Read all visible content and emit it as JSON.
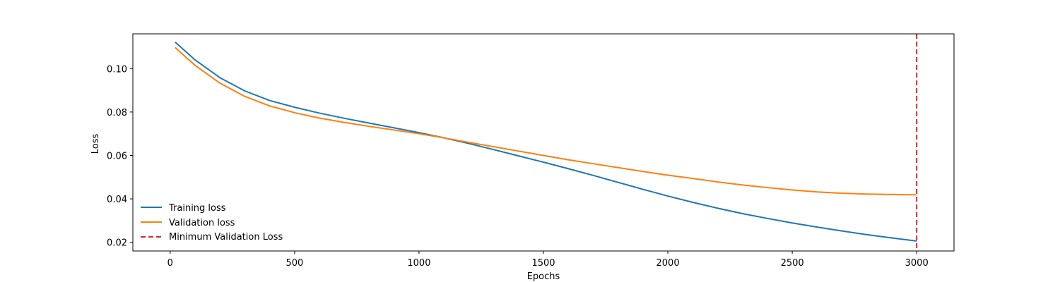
{
  "chart_data": {
    "type": "line",
    "title": "",
    "xlabel": "Epochs",
    "ylabel": "Loss",
    "xlim": [
      -150,
      3150
    ],
    "ylim": [
      0.016,
      0.116
    ],
    "xticks": [
      0,
      500,
      1000,
      1500,
      2000,
      2500,
      3000
    ],
    "xtick_labels": [
      "0",
      "500",
      "1000",
      "1500",
      "2000",
      "2500",
      "3000"
    ],
    "yticks": [
      0.02,
      0.04,
      0.06,
      0.08,
      0.1
    ],
    "ytick_labels": [
      "0.02",
      "0.04",
      "0.06",
      "0.08",
      "0.10"
    ],
    "grid": false,
    "legend_position": "lower-left",
    "series": [
      {
        "name": "Training loss",
        "color": "#1f77b4",
        "style": "solid",
        "x": [
          20,
          100,
          200,
          300,
          400,
          500,
          600,
          700,
          800,
          900,
          1000,
          1100,
          1200,
          1300,
          1400,
          1500,
          1600,
          1700,
          1800,
          1900,
          2000,
          2100,
          2200,
          2300,
          2400,
          2500,
          2600,
          2700,
          2800,
          2900,
          3000
        ],
        "y": [
          0.1122,
          0.104,
          0.0958,
          0.0897,
          0.0853,
          0.0822,
          0.0795,
          0.0771,
          0.0749,
          0.0727,
          0.0705,
          0.0681,
          0.0655,
          0.0627,
          0.0598,
          0.0569,
          0.0539,
          0.0508,
          0.0476,
          0.0444,
          0.0413,
          0.0384,
          0.0357,
          0.0332,
          0.031,
          0.0289,
          0.027,
          0.0252,
          0.0235,
          0.022,
          0.0206
        ]
      },
      {
        "name": "Validation loss",
        "color": "#ff7f0e",
        "style": "solid",
        "x": [
          20,
          100,
          200,
          300,
          400,
          500,
          600,
          700,
          800,
          900,
          1000,
          1100,
          1200,
          1300,
          1400,
          1500,
          1600,
          1700,
          1800,
          1900,
          2000,
          2100,
          2200,
          2300,
          2400,
          2500,
          2600,
          2700,
          2800,
          2900,
          3000
        ],
        "y": [
          0.1097,
          0.1015,
          0.0933,
          0.0872,
          0.0828,
          0.0797,
          0.0772,
          0.0752,
          0.0734,
          0.0717,
          0.07,
          0.0681,
          0.066,
          0.064,
          0.062,
          0.06,
          0.058,
          0.0562,
          0.0544,
          0.0526,
          0.0509,
          0.0494,
          0.0478,
          0.0464,
          0.0452,
          0.0441,
          0.0432,
          0.0426,
          0.0422,
          0.042,
          0.0419
        ]
      },
      {
        "name": "Minimum Validation Loss",
        "color": "#d62728",
        "style": "dashed",
        "type": "vline",
        "x": 3000
      }
    ]
  }
}
